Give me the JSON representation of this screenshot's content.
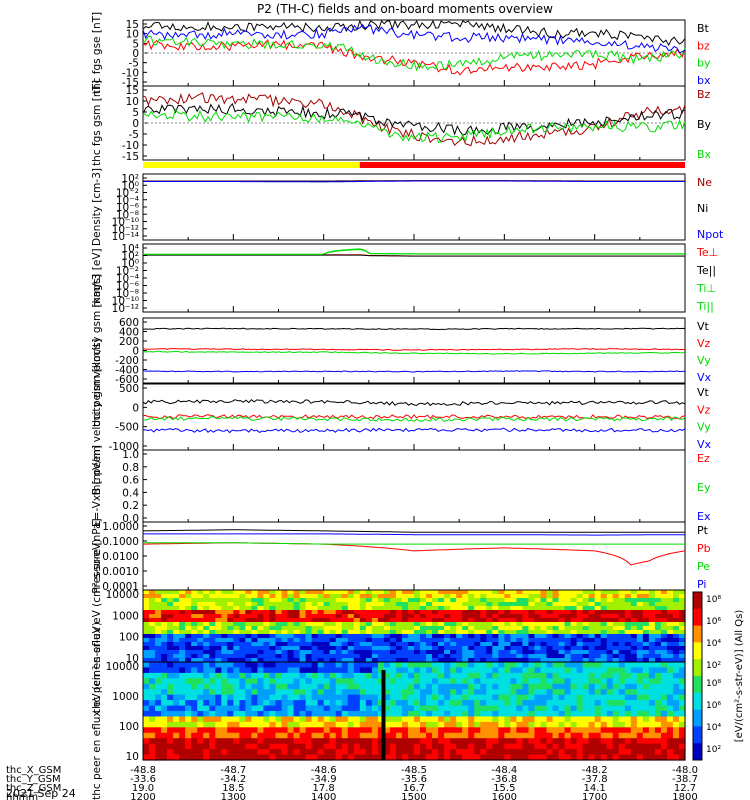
{
  "title": "P2 (TH-C) fields and on-board moments overview",
  "date": "2021 Sep 24",
  "colorbar_label": "[eV/(cm²-s-str-eV)] (All Qs)",
  "colorbar_ticks": [
    "10⁸",
    "10⁶",
    "10⁴",
    "10²"
  ],
  "orbit_rows": [
    {
      "label": "thc_X_GSM",
      "values": [
        "-48.8",
        "-48.7",
        "-48.6",
        "-48.5",
        "-48.4",
        "-48.2",
        "-48.0"
      ]
    },
    {
      "label": "thc_Y_GSM",
      "values": [
        "-33.6",
        "-34.2",
        "-34.9",
        "-35.6",
        "-36.8",
        "-37.8",
        "-38.7"
      ]
    },
    {
      "label": "thc_Z_GSM",
      "values": [
        "19.0",
        "18.5",
        "17.8",
        "16.7",
        "15.5",
        "14.1",
        "12.7"
      ]
    },
    {
      "label": "hhmm",
      "values": [
        "1200",
        "1300",
        "1400",
        "1500",
        "1600",
        "1700",
        "1800"
      ]
    }
  ],
  "colors": {
    "black": "#000000",
    "red": "#ff0000",
    "darkred": "#a00000",
    "green": "#00dd00",
    "blue": "#0000ff",
    "yellow": "#ffff00"
  },
  "chart_data": [
    {
      "id": "fgs_gse",
      "type": "line",
      "ylabel": "thc fgs gse [nT]",
      "ylim": [
        -15,
        15
      ],
      "ticks": [
        "15",
        "10",
        "5",
        "0",
        "-5",
        "-10",
        "-15"
      ],
      "xlim": [
        1200,
        1800
      ],
      "series": [
        {
          "name": "Bt",
          "color": "#000000",
          "x": [
            1200,
            1250,
            1300,
            1350,
            1400,
            1420,
            1450,
            1500,
            1550,
            1600,
            1650,
            1700,
            1750,
            1800
          ],
          "y": [
            12,
            11.5,
            12,
            12,
            11.5,
            12,
            13,
            13,
            14,
            11,
            9,
            9,
            7,
            5
          ]
        },
        {
          "name": "bz",
          "color": "#ff0000",
          "x": [
            1200,
            1250,
            1300,
            1350,
            1400,
            1420,
            1450,
            1500,
            1550,
            1600,
            1650,
            1700,
            1750,
            1800
          ],
          "y": [
            4,
            3,
            3,
            4,
            3,
            1,
            -2,
            -5,
            -8,
            -7,
            -6,
            -5,
            -1,
            0
          ]
        },
        {
          "name": "by",
          "color": "#00dd00",
          "x": [
            1200,
            1250,
            1300,
            1350,
            1400,
            1420,
            1450,
            1500,
            1550,
            1600,
            1650,
            1700,
            1750,
            1800
          ],
          "y": [
            6,
            5,
            4,
            4,
            4,
            3,
            -2,
            -6,
            -5,
            -2,
            -1,
            0,
            -3,
            0
          ]
        },
        {
          "name": "bx",
          "color": "#0000ff",
          "x": [
            1200,
            1250,
            1300,
            1350,
            1400,
            1420,
            1450,
            1500,
            1550,
            1600,
            1650,
            1700,
            1750,
            1800
          ],
          "y": [
            9,
            8,
            9,
            8,
            9,
            10,
            11,
            8,
            7,
            7,
            6,
            5,
            3,
            2
          ]
        }
      ]
    },
    {
      "id": "fgs_gsm",
      "type": "line",
      "ylabel": "thc fgs gsm [nT]",
      "ylim": [
        -15,
        15
      ],
      "ticks": [
        "15",
        "10",
        "5",
        "0",
        "-5",
        "-10",
        "-15"
      ],
      "xlim": [
        1200,
        1800
      ],
      "series": [
        {
          "name": "Bz",
          "color": "#a00000",
          "x": [
            1200,
            1250,
            1300,
            1350,
            1400,
            1420,
            1450,
            1500,
            1550,
            1600,
            1650,
            1700,
            1750,
            1800
          ],
          "y": [
            9,
            10,
            10,
            9,
            8,
            6,
            0,
            -5,
            -8,
            -6,
            -4,
            -2,
            4,
            6
          ]
        },
        {
          "name": "By",
          "color": "#000000",
          "x": [
            1200,
            1250,
            1300,
            1350,
            1400,
            1420,
            1450,
            1500,
            1550,
            1600,
            1650,
            1700,
            1750,
            1800
          ],
          "y": [
            5,
            6,
            6,
            5,
            4,
            4,
            2,
            -1,
            -3,
            -2,
            -1,
            0,
            3,
            4
          ]
        },
        {
          "name": "Bx",
          "color": "#00dd00",
          "x": [
            1200,
            1250,
            1300,
            1350,
            1400,
            1420,
            1450,
            1500,
            1550,
            1600,
            1650,
            1700,
            1750,
            1800
          ],
          "y": [
            4,
            3,
            2,
            3,
            2,
            2,
            -2,
            -6,
            -6,
            -3,
            -2,
            -1,
            -2,
            0
          ]
        }
      ]
    },
    {
      "id": "density",
      "type": "line",
      "ylabel": "Density [cm-3]",
      "yscale": "log",
      "ylim": [
        1e-14,
        100.0
      ],
      "ticks": [
        "10²",
        "10⁰",
        "10⁻²",
        "10⁻⁴",
        "10⁻⁶",
        "10⁻⁸",
        "10⁻¹⁰",
        "10⁻¹²",
        "10⁻¹⁴"
      ],
      "xlim": [
        1200,
        1800
      ],
      "series": [
        {
          "name": "Ne",
          "color": "#a00000",
          "x": [
            1200,
            1300,
            1400,
            1500,
            1600,
            1700,
            1800
          ],
          "y": [
            2,
            2,
            2,
            2.5,
            2.5,
            2,
            2
          ]
        },
        {
          "name": "Ni",
          "color": "#000000",
          "x": [
            1200,
            1300,
            1400,
            1500,
            1600,
            1700,
            1800
          ],
          "y": [
            1.8,
            1.8,
            1.8,
            2.2,
            2.2,
            1.8,
            1.8
          ]
        },
        {
          "name": "Npot",
          "color": "#0000ff",
          "x": [
            1200,
            1300,
            1400,
            1500,
            1600,
            1700,
            1800
          ],
          "y": [
            1.5,
            1.5,
            1.2,
            2,
            2,
            1.5,
            1.5
          ]
        }
      ]
    },
    {
      "id": "temperature",
      "type": "line",
      "ylabel": "magt3 [eV]",
      "yscale": "log",
      "ylim": [
        1e-12,
        10000.0
      ],
      "ticks": [
        "10⁴",
        "10²",
        "10⁰",
        "10⁻²",
        "10⁻⁴",
        "10⁻⁶",
        "10⁻⁸",
        "10⁻¹⁰",
        "10⁻¹²"
      ],
      "xlim": [
        1200,
        1800
      ],
      "series": [
        {
          "name": "Te⊥",
          "color": "#ff0000",
          "x": [
            1200,
            1300,
            1400,
            1440,
            1450,
            1500,
            1600,
            1700,
            1800
          ],
          "y": [
            30,
            30,
            30,
            30,
            20,
            15,
            15,
            15,
            15
          ]
        },
        {
          "name": "Te||",
          "color": "#000000",
          "x": [
            1200,
            1300,
            1400,
            1440,
            1450,
            1500,
            1600,
            1700,
            1800
          ],
          "y": [
            25,
            25,
            25,
            25,
            18,
            14,
            14,
            14,
            14
          ]
        },
        {
          "name": "Ti⊥",
          "color": "#00dd00",
          "x": [
            1200,
            1300,
            1400,
            1440,
            1450,
            1500,
            1600,
            1700,
            1800
          ],
          "y": [
            40,
            40,
            40,
            700,
            60,
            50,
            50,
            50,
            50
          ]
        },
        {
          "name": "Ti||",
          "color": "#00dd00",
          "x": [
            1200,
            1300,
            1400,
            1440,
            1450,
            1500,
            1600,
            1700,
            1800
          ],
          "y": [
            35,
            35,
            35,
            500,
            50,
            45,
            45,
            45,
            45
          ]
        }
      ]
    },
    {
      "id": "peim_velocity",
      "type": "line",
      "ylabel": "thc peim velocity gsm [km/s]",
      "ylim": [
        -600,
        600
      ],
      "ticks": [
        "600",
        "400",
        "200",
        "0",
        "-200",
        "-400",
        "-600"
      ],
      "xlim": [
        1200,
        1800
      ],
      "series": [
        {
          "name": "Vt",
          "color": "#000000",
          "x": [
            1200,
            1300,
            1400,
            1500,
            1600,
            1700,
            1800
          ],
          "y": [
            400,
            405,
            400,
            395,
            400,
            400,
            405
          ]
        },
        {
          "name": "Vz",
          "color": "#ff0000",
          "x": [
            1200,
            1300,
            1400,
            1500,
            1600,
            1700,
            1800
          ],
          "y": [
            30,
            25,
            20,
            10,
            20,
            30,
            20
          ]
        },
        {
          "name": "Vy",
          "color": "#00dd00",
          "x": [
            1200,
            1300,
            1400,
            1500,
            1600,
            1700,
            1800
          ],
          "y": [
            -20,
            -30,
            -30,
            -50,
            -60,
            -50,
            -40
          ]
        },
        {
          "name": "Vx",
          "color": "#0000ff",
          "x": [
            1200,
            1300,
            1400,
            1500,
            1600,
            1700,
            1800
          ],
          "y": [
            -380,
            -390,
            -385,
            -390,
            -380,
            -390,
            -385
          ]
        }
      ]
    },
    {
      "id": "peem_velocity",
      "type": "line",
      "ylabel": "thc peem velocity gsm [km/s]",
      "ylim": [
        -1000,
        1000
      ],
      "ticks": [
        "500",
        "0",
        "-500",
        "-1000"
      ],
      "xlim": [
        1200,
        1800
      ],
      "series": [
        {
          "name": "Vt",
          "color": "#000000",
          "x": [
            1200,
            1300,
            1400,
            1500,
            1600,
            1700,
            1800
          ],
          "y": [
            450,
            480,
            460,
            400,
            420,
            430,
            440
          ]
        },
        {
          "name": "Vz",
          "color": "#ff0000",
          "x": [
            1200,
            1300,
            1400,
            1500,
            1600,
            1700,
            1800
          ],
          "y": [
            0,
            20,
            10,
            10,
            0,
            10,
            0
          ]
        },
        {
          "name": "Vy",
          "color": "#00dd00",
          "x": [
            1200,
            1300,
            1400,
            1500,
            1600,
            1700,
            1800
          ],
          "y": [
            -50,
            -40,
            -60,
            -80,
            -60,
            -70,
            -50
          ]
        },
        {
          "name": "Vx",
          "color": "#0000ff",
          "x": [
            1200,
            1300,
            1400,
            1500,
            1600,
            1700,
            1800
          ],
          "y": [
            -400,
            -420,
            -410,
            -380,
            -390,
            -400,
            -400
          ]
        }
      ]
    },
    {
      "id": "efield",
      "type": "line",
      "ylabel": "E=-VxB [mV/m]",
      "ylim": [
        0,
        1
      ],
      "ticks": [
        "1.0",
        "0.8",
        "0.6",
        "0.4",
        "0.2",
        "0.0"
      ],
      "xlim": [
        1200,
        1800
      ],
      "series": [
        {
          "name": "Ez",
          "color": "#ff0000",
          "x": [],
          "y": []
        },
        {
          "name": "Ey",
          "color": "#00dd00",
          "x": [],
          "y": []
        },
        {
          "name": "Ex",
          "color": "#0000ff",
          "x": [],
          "y": []
        }
      ]
    },
    {
      "id": "pressure",
      "type": "line",
      "ylabel": "Pressure [nPa]",
      "yscale": "log",
      "ylim": [
        0.0001,
        1
      ],
      "ticks": [
        "1.0000",
        "0.1000",
        "0.0100",
        "0.0010",
        "0.0001"
      ],
      "xlim": [
        1200,
        1800
      ],
      "series": [
        {
          "name": "Pt",
          "color": "#000000",
          "x": [
            1200,
            1300,
            1400,
            1500,
            1600,
            1700,
            1800
          ],
          "y": [
            0.3,
            0.35,
            0.3,
            0.25,
            0.25,
            0.25,
            0.25
          ]
        },
        {
          "name": "Pb",
          "color": "#ff0000",
          "x": [
            1200,
            1300,
            1400,
            1500,
            1600,
            1700,
            1740,
            1760,
            1800
          ],
          "y": [
            0.05,
            0.06,
            0.05,
            0.02,
            0.03,
            0.02,
            0.003,
            0.005,
            0.02
          ]
        },
        {
          "name": "Pe",
          "color": "#00dd00",
          "x": [
            1200,
            1300,
            1400,
            1500,
            1600,
            1700,
            1800
          ],
          "y": [
            0.06,
            0.06,
            0.05,
            0.05,
            0.05,
            0.05,
            0.05
          ]
        },
        {
          "name": "Pi",
          "color": "#0000ff",
          "x": [
            1200,
            1300,
            1400,
            1500,
            1600,
            1700,
            1800
          ],
          "y": [
            0.2,
            0.2,
            0.2,
            0.18,
            0.18,
            0.17,
            0.18
          ]
        }
      ]
    },
    {
      "id": "peir_spectrogram",
      "type": "heatmap",
      "ylabel": "thc peir en eflux eV (cm²-s-sr-eV)",
      "yscale": "log",
      "ylim": [
        10,
        100000
      ],
      "ticks": [
        "10000",
        "1000",
        "100",
        "10"
      ],
      "xlim": [
        1200,
        1800
      ]
    },
    {
      "id": "peer_spectrogram",
      "type": "heatmap",
      "ylabel": "thc peer en eflux eV (cm²-s-sr-eV)",
      "yscale": "log",
      "ylim": [
        5,
        20000
      ],
      "ticks": [
        "10000",
        "1000",
        "100",
        "10"
      ],
      "xlim": [
        1200,
        1800
      ]
    }
  ]
}
